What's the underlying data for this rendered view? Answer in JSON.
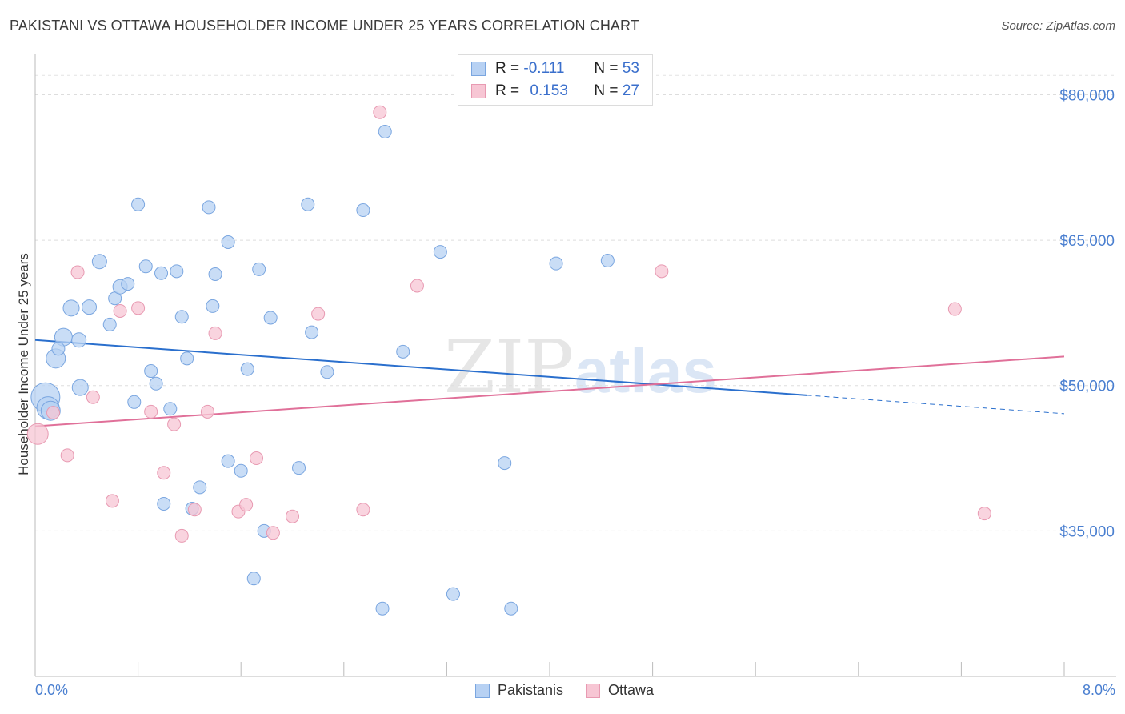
{
  "title": "PAKISTANI VS OTTAWA HOUSEHOLDER INCOME UNDER 25 YEARS CORRELATION CHART",
  "source": "Source: ZipAtlas.com",
  "legend_top": {
    "rows": [
      {
        "r_label": "R =",
        "r_value": "-0.111",
        "n_label": "N =",
        "n_value": "53"
      },
      {
        "r_label": "R =",
        "r_value": "0.153",
        "n_label": "N =",
        "n_value": "27"
      }
    ]
  },
  "legend_bottom": [
    "Pakistanis",
    "Ottawa"
  ],
  "x_axis": {
    "min_label": "0.0%",
    "max_label": "8.0%"
  },
  "colors": {
    "blue_fill": "#b7d1f3",
    "blue_stroke": "#7aa6e0",
    "blue_line": "#2a6fcd",
    "pink_fill": "#f7c6d4",
    "pink_stroke": "#e89ab2",
    "pink_line": "#e07099",
    "tick_text": "#4a7fd0"
  },
  "chart_data": {
    "type": "scatter",
    "xlabel": "",
    "ylabel": "Householder Income Under 25 years",
    "xlim": [
      0,
      8
    ],
    "ylim": [
      20000,
      84000
    ],
    "y_ticks": [
      {
        "value": 35000,
        "label": "$35,000"
      },
      {
        "value": 50000,
        "label": "$50,000"
      },
      {
        "value": 65000,
        "label": "$65,000"
      },
      {
        "value": 80000,
        "label": "$80,000"
      }
    ],
    "grid": "horizontal dashed",
    "legend": "top-center and bottom",
    "series": [
      {
        "name": "Pakistanis",
        "points": [
          [
            0.08,
            48800,
            18
          ],
          [
            0.1,
            47700,
            14
          ],
          [
            0.16,
            52800,
            12
          ],
          [
            0.22,
            55000,
            11
          ],
          [
            0.28,
            58000,
            10
          ],
          [
            0.34,
            54700,
            9
          ],
          [
            0.35,
            49800,
            10
          ],
          [
            0.42,
            58100,
            9
          ],
          [
            0.5,
            62800,
            9
          ],
          [
            0.58,
            56300,
            8
          ],
          [
            0.62,
            59000,
            8
          ],
          [
            0.66,
            60200,
            9
          ],
          [
            0.72,
            60500,
            8
          ],
          [
            0.77,
            48300,
            8
          ],
          [
            0.8,
            68700,
            8
          ],
          [
            0.86,
            62300,
            8
          ],
          [
            0.9,
            51500,
            8
          ],
          [
            0.94,
            50200,
            8
          ],
          [
            0.98,
            61600,
            8
          ],
          [
            1.0,
            37800,
            8
          ],
          [
            1.05,
            47600,
            8
          ],
          [
            1.1,
            61800,
            8
          ],
          [
            1.14,
            57100,
            8
          ],
          [
            1.18,
            52800,
            8
          ],
          [
            1.22,
            37300,
            8
          ],
          [
            1.28,
            39500,
            8
          ],
          [
            1.35,
            68400,
            8
          ],
          [
            1.38,
            58200,
            8
          ],
          [
            1.4,
            61500,
            8
          ],
          [
            1.5,
            64800,
            8
          ],
          [
            1.5,
            42200,
            8
          ],
          [
            1.6,
            41200,
            8
          ],
          [
            1.65,
            51700,
            8
          ],
          [
            1.7,
            30100,
            8
          ],
          [
            1.74,
            62000,
            8
          ],
          [
            1.78,
            35000,
            8
          ],
          [
            1.83,
            57000,
            8
          ],
          [
            2.05,
            41500,
            8
          ],
          [
            2.12,
            68700,
            8
          ],
          [
            2.15,
            55500,
            8
          ],
          [
            2.27,
            51400,
            8
          ],
          [
            2.55,
            68100,
            8
          ],
          [
            2.7,
            27000,
            8
          ],
          [
            2.72,
            76200,
            8
          ],
          [
            2.86,
            53500,
            8
          ],
          [
            3.15,
            63800,
            8
          ],
          [
            3.25,
            28500,
            8
          ],
          [
            3.65,
            42000,
            8
          ],
          [
            3.7,
            27000,
            8
          ],
          [
            4.05,
            62600,
            8
          ],
          [
            4.45,
            62900,
            8
          ],
          [
            0.12,
            47400,
            12
          ],
          [
            0.18,
            53800,
            8
          ]
        ]
      },
      {
        "name": "Ottawa",
        "points": [
          [
            0.02,
            45000,
            13
          ],
          [
            0.14,
            47200,
            8
          ],
          [
            0.25,
            42800,
            8
          ],
          [
            0.33,
            61700,
            8
          ],
          [
            0.45,
            48800,
            8
          ],
          [
            0.6,
            38100,
            8
          ],
          [
            0.66,
            57700,
            8
          ],
          [
            0.8,
            58000,
            8
          ],
          [
            0.9,
            47300,
            8
          ],
          [
            1.0,
            41000,
            8
          ],
          [
            1.08,
            46000,
            8
          ],
          [
            1.14,
            34500,
            8
          ],
          [
            1.24,
            37200,
            8
          ],
          [
            1.34,
            47300,
            8
          ],
          [
            1.4,
            55400,
            8
          ],
          [
            1.58,
            37000,
            8
          ],
          [
            1.64,
            37700,
            8
          ],
          [
            1.72,
            42500,
            8
          ],
          [
            1.85,
            34800,
            8
          ],
          [
            2.0,
            36500,
            8
          ],
          [
            2.2,
            57400,
            8
          ],
          [
            2.55,
            37200,
            8
          ],
          [
            2.68,
            78200,
            8
          ],
          [
            2.97,
            60300,
            8
          ],
          [
            4.87,
            61800,
            8
          ],
          [
            7.15,
            57900,
            8
          ],
          [
            7.38,
            36800,
            8
          ]
        ]
      }
    ],
    "trendlines": [
      {
        "series": "Pakistanis",
        "x0": 0.0,
        "y0": 54700,
        "x1": 6.0,
        "y1": 49000,
        "dashed_to_x": 8.0,
        "dashed_to_y": 47100
      },
      {
        "series": "Ottawa",
        "x0": 0.0,
        "y0": 45800,
        "x1": 8.0,
        "y1": 53000
      }
    ]
  }
}
